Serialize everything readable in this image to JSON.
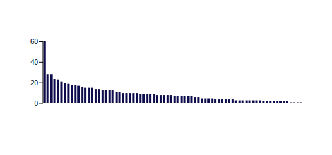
{
  "chart_data": {
    "type": "bar",
    "categories": [
      null,
      null,
      null,
      null,
      null,
      null,
      null,
      null,
      null,
      null,
      null,
      null,
      null,
      null,
      null,
      null,
      null,
      null,
      null,
      null,
      null,
      null,
      null,
      null,
      null,
      null,
      null,
      null,
      null,
      null,
      null,
      null,
      null,
      null,
      null,
      null,
      null,
      null,
      null,
      null,
      null,
      null,
      null,
      null,
      null,
      null,
      null,
      null,
      null,
      null,
      null,
      null,
      null,
      null,
      null,
      null,
      null,
      null,
      null,
      null,
      null,
      null,
      null,
      null,
      null,
      null,
      null,
      null,
      null,
      null,
      null,
      null,
      null,
      null,
      null,
      null
    ],
    "values": [
      61,
      28,
      28,
      24,
      23,
      21,
      20,
      19,
      18,
      18,
      17,
      16,
      15,
      15,
      15,
      14,
      14,
      13,
      13,
      13,
      13,
      11,
      11,
      10,
      10,
      10,
      10,
      10,
      9,
      9,
      9,
      9,
      9,
      8,
      8,
      8,
      8,
      8,
      7,
      7,
      7,
      7,
      7,
      7,
      6,
      6,
      5,
      5,
      5,
      5,
      4,
      4,
      4,
      4,
      4,
      4,
      3,
      3,
      3,
      3,
      3,
      3,
      3,
      3,
      2,
      2,
      2,
      2,
      2,
      2,
      2,
      2,
      1,
      1,
      1,
      1
    ],
    "color": "#0d0d4d",
    "ylim": [
      0,
      61
    ],
    "yticks": [
      0,
      20,
      40,
      60
    ],
    "tick_labels": "y"
  }
}
